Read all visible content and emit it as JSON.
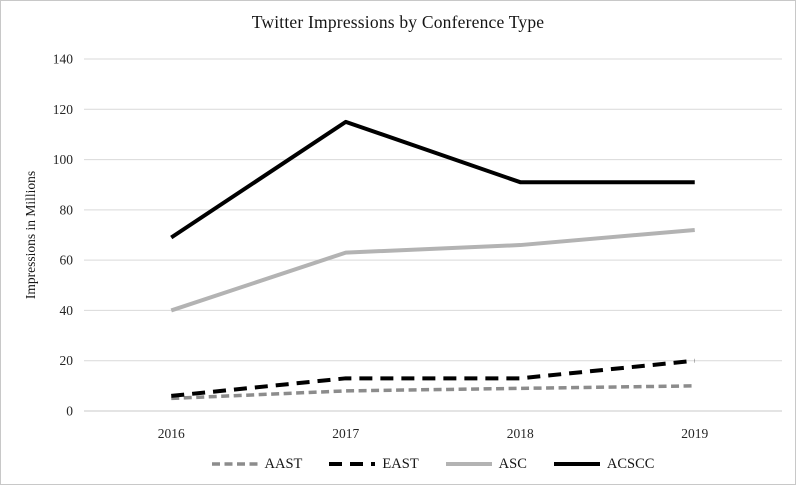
{
  "window": {
    "background": "#ffffff",
    "border_color": "#c8c8c8"
  },
  "chart_data": {
    "type": "line",
    "title": "Twitter Impressions by Conference Type",
    "xlabel": "",
    "ylabel": "Impressions in Millions",
    "categories": [
      "2016",
      "2017",
      "2018",
      "2019"
    ],
    "series": [
      {
        "name": "AAST",
        "color": "#8c8c8c",
        "dash": "8 4.5",
        "stroke_width": 3.5,
        "values": [
          5,
          8,
          9,
          10
        ]
      },
      {
        "name": "EAST",
        "color": "#000000",
        "dash": "13 8",
        "stroke_width": 4,
        "values": [
          6,
          13,
          13,
          20
        ]
      },
      {
        "name": "ASC",
        "color": "#b3b3b3",
        "dash": null,
        "stroke_width": 4,
        "values": [
          40,
          63,
          66,
          72
        ]
      },
      {
        "name": "ACSCC",
        "color": "#000000",
        "dash": null,
        "stroke_width": 4,
        "values": [
          69,
          115,
          91,
          91
        ]
      }
    ],
    "ylim": [
      0,
      140
    ],
    "ytick_step": 20,
    "y_tick_labels": [
      "0",
      "20",
      "40",
      "60",
      "80",
      "100",
      "120",
      "140"
    ],
    "grid": true,
    "gridline_color": "#d9d9d9",
    "axis_line_color": "#c9c9c9",
    "axis_text_color": "#262626",
    "legend_position": "bottom"
  }
}
